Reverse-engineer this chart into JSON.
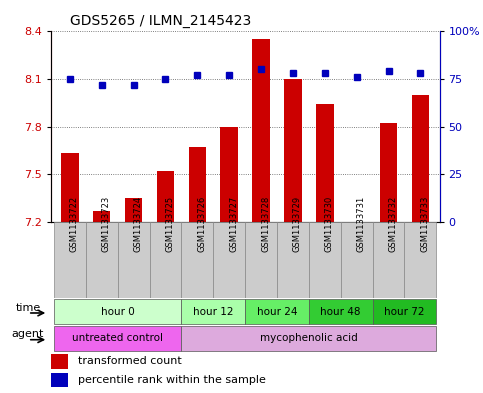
{
  "title": "GDS5265 / ILMN_2145423",
  "samples": [
    "GSM1133722",
    "GSM1133723",
    "GSM1133724",
    "GSM1133725",
    "GSM1133726",
    "GSM1133727",
    "GSM1133728",
    "GSM1133729",
    "GSM1133730",
    "GSM1133731",
    "GSM1133732",
    "GSM1133733"
  ],
  "transformed_count": [
    7.63,
    7.27,
    7.35,
    7.52,
    7.67,
    7.8,
    8.35,
    8.1,
    7.94,
    7.2,
    7.82,
    8.0
  ],
  "percentile_rank": [
    75,
    72,
    72,
    75,
    77,
    77,
    80,
    78,
    78,
    76,
    79,
    78
  ],
  "ylim_left": [
    7.2,
    8.4
  ],
  "yticks_left": [
    7.2,
    7.5,
    7.8,
    8.1,
    8.4
  ],
  "ylim_right": [
    0,
    100
  ],
  "yticks_right": [
    0,
    25,
    50,
    75,
    100
  ],
  "ytick_labels_right": [
    "0",
    "25",
    "50",
    "75",
    "100%"
  ],
  "bar_color": "#cc0000",
  "dot_color": "#0000bb",
  "bar_width": 0.55,
  "time_groups": [
    {
      "label": "hour 0",
      "start": 0,
      "end": 3,
      "color": "#ccffcc"
    },
    {
      "label": "hour 12",
      "start": 4,
      "end": 5,
      "color": "#aaffaa"
    },
    {
      "label": "hour 24",
      "start": 6,
      "end": 7,
      "color": "#66ee66"
    },
    {
      "label": "hour 48",
      "start": 8,
      "end": 9,
      "color": "#33cc33"
    },
    {
      "label": "hour 72",
      "start": 10,
      "end": 11,
      "color": "#22bb22"
    }
  ],
  "agent_groups": [
    {
      "label": "untreated control",
      "start": 0,
      "end": 3,
      "color": "#ee66ee"
    },
    {
      "label": "mycophenolic acid",
      "start": 4,
      "end": 11,
      "color": "#ddaadd"
    }
  ],
  "legend_bar_label": "transformed count",
  "legend_dot_label": "percentile rank within the sample",
  "time_label": "time",
  "agent_label": "agent",
  "background_color": "#ffffff",
  "plot_bg_color": "#ffffff",
  "grid_color": "#555555",
  "tick_label_bg": "#cccccc",
  "left_color": "#cc0000",
  "right_color": "#0000bb"
}
